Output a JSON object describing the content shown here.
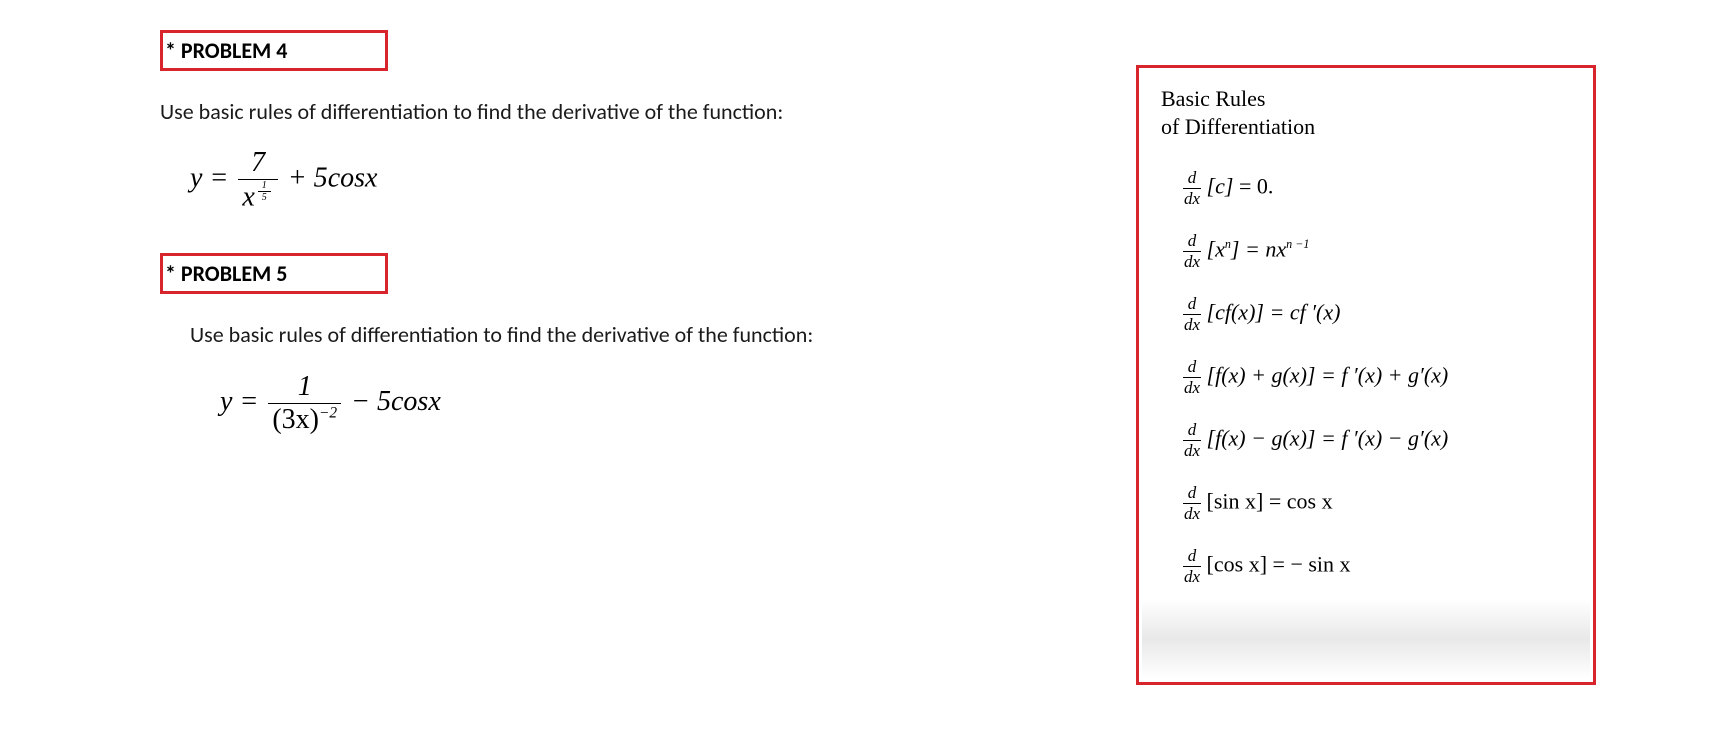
{
  "colors": {
    "highlight_border": "#d8242b",
    "text": "#1a1a1a",
    "rule_text": "#111111"
  },
  "problem4": {
    "heading": "* PROBLEM 4",
    "instruction": "Use basic rules of differentiation to find the derivative of the function:",
    "equation": {
      "lhs": "y",
      "eq": " = ",
      "frac_num": "7",
      "frac_den_base": "x",
      "frac_den_exp_num": "1",
      "frac_den_exp_den": "5",
      "plus": " + 5",
      "func": "cosx"
    }
  },
  "problem5": {
    "heading": "* PROBLEM 5",
    "instruction": "Use basic rules of differentiation to find the derivative of the function:",
    "equation": {
      "lhs": "y",
      "eq": " = ",
      "frac_num": "1",
      "frac_den": "(3x)",
      "frac_den_exp": "−2",
      "minus": " − 5",
      "func": "cosx"
    }
  },
  "rules": {
    "title_line1": "Basic Rules",
    "title_line2": "of Differentiation",
    "r1": {
      "bracket": "[c]",
      "rhs": " = 0."
    },
    "r2": {
      "bracket_open": "[x",
      "exp": "n",
      "bracket_close": "]",
      "rhs_a": " = n",
      "rhs_b": "x",
      "rhs_exp_pre": "n",
      "rhs_exp_suf": "−1"
    },
    "r3": {
      "bracket": "[cf(x)]",
      "rhs": " = cf ′(x)"
    },
    "r4": {
      "bracket": "[f(x) + g(x)]",
      "rhs": " = f ′(x) + g′(x)"
    },
    "r5": {
      "bracket": "[f(x) − g(x)]",
      "rhs": " = f ′(x) − g′(x)"
    },
    "r6": {
      "bracket": "[sin x]",
      "rhs": " = cos x"
    },
    "r7": {
      "bracket": "[cos x]",
      "rhs": " = − sin x"
    }
  }
}
